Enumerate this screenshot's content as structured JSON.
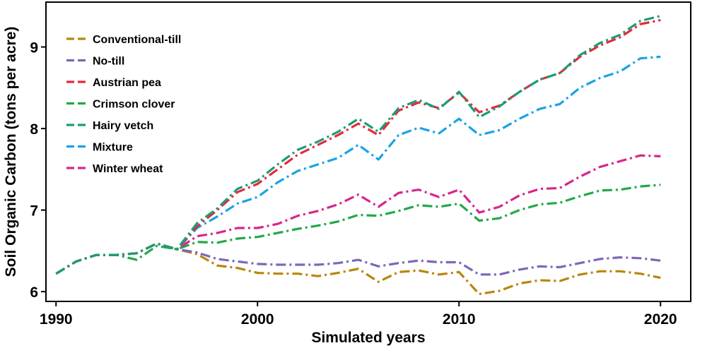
{
  "chart_data": {
    "type": "line",
    "xlabel": "Simulated years",
    "ylabel": "Soil Organic Carbon (tons per acre)",
    "xlim": [
      1989.5,
      2021.5
    ],
    "ylim": [
      5.88,
      9.55
    ],
    "xticks": [
      1990,
      2000,
      2010,
      2020
    ],
    "yticks": [
      6,
      7,
      8,
      9
    ],
    "legend_position": "top-left",
    "grid": false,
    "x": [
      1990,
      1991,
      1992,
      1993,
      1994,
      1995,
      1996,
      1997,
      1998,
      1999,
      2000,
      2001,
      2002,
      2003,
      2004,
      2005,
      2006,
      2007,
      2008,
      2009,
      2010,
      2011,
      2012,
      2013,
      2014,
      2015,
      2016,
      2017,
      2018,
      2019,
      2020
    ],
    "series": [
      {
        "name": "Conventional-till",
        "color": "#B8860B",
        "values": [
          6.22,
          6.37,
          6.45,
          6.45,
          6.47,
          6.59,
          6.52,
          6.46,
          6.32,
          6.29,
          6.23,
          6.22,
          6.22,
          6.19,
          6.23,
          6.28,
          6.12,
          6.24,
          6.26,
          6.21,
          6.24,
          5.97,
          6.01,
          6.1,
          6.14,
          6.13,
          6.21,
          6.25,
          6.25,
          6.22,
          6.17
        ]
      },
      {
        "name": "No-till",
        "color": "#7B68B8",
        "values": [
          6.22,
          6.37,
          6.45,
          6.45,
          6.47,
          6.59,
          6.52,
          6.48,
          6.4,
          6.37,
          6.34,
          6.33,
          6.33,
          6.33,
          6.35,
          6.39,
          6.31,
          6.35,
          6.38,
          6.36,
          6.36,
          6.21,
          6.21,
          6.27,
          6.31,
          6.3,
          6.35,
          6.4,
          6.42,
          6.41,
          6.38
        ]
      },
      {
        "name": "Austrian pea",
        "color": "#E8283C",
        "values": [
          6.22,
          6.37,
          6.45,
          6.45,
          6.47,
          6.59,
          6.52,
          6.8,
          7.0,
          7.22,
          7.32,
          7.5,
          7.68,
          7.8,
          7.92,
          8.06,
          7.92,
          8.22,
          8.32,
          8.25,
          8.44,
          8.2,
          8.28,
          8.45,
          8.6,
          8.68,
          8.88,
          9.02,
          9.12,
          9.28,
          9.33
        ]
      },
      {
        "name": "Crimson clover",
        "color": "#22A84A",
        "values": [
          6.22,
          6.37,
          6.45,
          6.45,
          6.39,
          6.56,
          6.52,
          6.61,
          6.6,
          6.65,
          6.67,
          6.72,
          6.77,
          6.81,
          6.86,
          6.94,
          6.93,
          6.99,
          7.06,
          7.04,
          7.08,
          6.87,
          6.9,
          7.0,
          7.07,
          7.09,
          7.17,
          7.24,
          7.25,
          7.29,
          7.31
        ]
      },
      {
        "name": "Hairy vetch",
        "color": "#1A9E74",
        "values": [
          6.22,
          6.37,
          6.45,
          6.45,
          6.47,
          6.59,
          6.52,
          6.84,
          7.02,
          7.26,
          7.36,
          7.56,
          7.74,
          7.84,
          7.96,
          8.12,
          7.96,
          8.25,
          8.35,
          8.24,
          8.45,
          8.14,
          8.27,
          8.45,
          8.6,
          8.68,
          8.9,
          9.05,
          9.15,
          9.32,
          9.38
        ]
      },
      {
        "name": "Mixture",
        "color": "#1AA3E6",
        "values": [
          6.22,
          6.37,
          6.45,
          6.45,
          6.47,
          6.59,
          6.52,
          6.78,
          6.92,
          7.08,
          7.16,
          7.34,
          7.48,
          7.56,
          7.64,
          7.8,
          7.62,
          7.92,
          8.01,
          7.94,
          8.12,
          7.92,
          7.98,
          8.12,
          8.24,
          8.3,
          8.5,
          8.62,
          8.7,
          8.86,
          8.88
        ]
      },
      {
        "name": "Winter wheat",
        "color": "#D6268C",
        "values": [
          6.22,
          6.37,
          6.45,
          6.45,
          6.47,
          6.59,
          6.52,
          6.68,
          6.72,
          6.78,
          6.78,
          6.83,
          6.93,
          6.99,
          7.07,
          7.19,
          7.04,
          7.21,
          7.25,
          7.16,
          7.25,
          6.97,
          7.04,
          7.18,
          7.26,
          7.27,
          7.41,
          7.53,
          7.6,
          7.67,
          7.66
        ]
      }
    ]
  }
}
